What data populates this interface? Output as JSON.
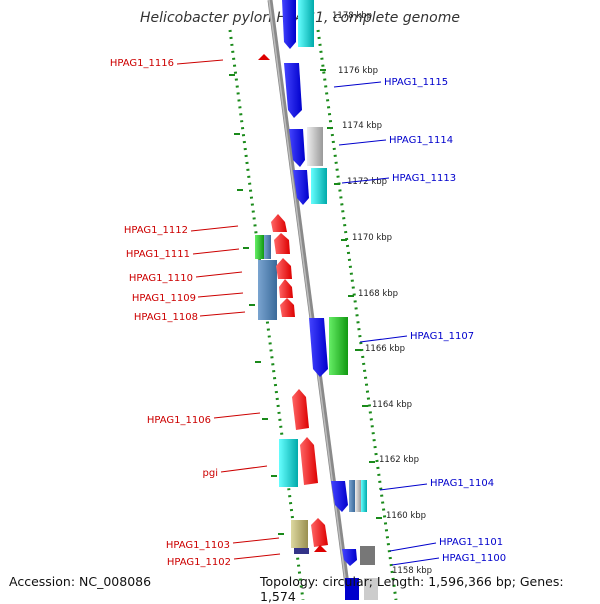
{
  "title": "Helicobacter pylori HPAG1, complete genome",
  "footer": {
    "accession": "Accession: NC_008086",
    "topology": "Topology: circular; Length: 1,596,366 bp; Genes: 1,574"
  },
  "colors": {
    "forward_label": "#cc0000",
    "reverse_label": "#0000cc",
    "backbone": "#888888",
    "dots": "#1a8a1a"
  },
  "ticks": [
    "1178 kbp",
    "1176 kbp",
    "1174 kbp",
    "1172 kbp",
    "1170 kbp",
    "1168 kbp",
    "1166 kbp",
    "1164 kbp",
    "1162 kbp",
    "1160 kbp",
    "1158 kbp"
  ],
  "left_labels": [
    "HPAG1_1116",
    "HPAG1_1112",
    "HPAG1_1111",
    "HPAG1_1110",
    "HPAG1_1109",
    "HPAG1_1108",
    "HPAG1_1106",
    "pgi",
    "HPAG1_1103",
    "HPAG1_1102"
  ],
  "right_labels": [
    "HPAG1_1115",
    "HPAG1_1114",
    "HPAG1_1113",
    "HPAG1_1107",
    "HPAG1_1104",
    "HPAG1_1101",
    "HPAG1_1100"
  ]
}
